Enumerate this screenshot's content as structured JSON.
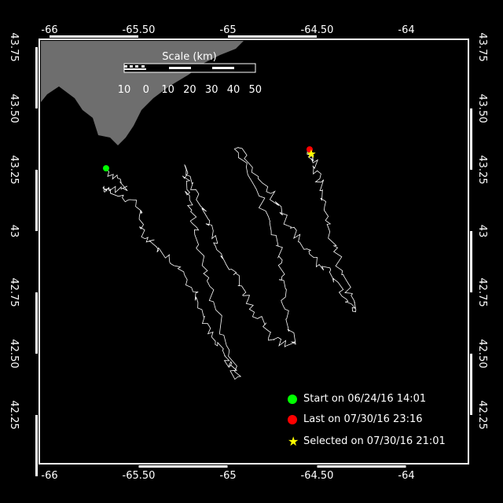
{
  "map": {
    "lon_ticks": [
      "-66",
      "-65.50",
      "-65",
      "-64.50",
      "-64"
    ],
    "lon_values": [
      -66,
      -65.5,
      -65,
      -64.5,
      -64
    ],
    "lat_ticks": [
      "43.75",
      "43.50",
      "43.25",
      "43",
      "42.75",
      "42.50",
      "42.25"
    ],
    "lat_values": [
      43.75,
      43.5,
      43.25,
      43,
      42.75,
      42.5,
      42.25
    ],
    "land_color": "#6e6e6e",
    "track_color": "#ffffff",
    "scale": {
      "title": "Scale (km)",
      "labels": [
        "10",
        "0",
        "10",
        "20",
        "30",
        "40",
        "50"
      ]
    },
    "track": [
      [
        -65.683,
        43.256
      ],
      [
        -65.573,
        43.173
      ],
      [
        -65.705,
        43.173
      ],
      [
        -65.507,
        43.109
      ],
      [
        -65.463,
        42.981
      ],
      [
        -65.33,
        42.885
      ],
      [
        -65.176,
        42.756
      ],
      [
        -65.11,
        42.596
      ],
      [
        -65.0,
        42.468
      ],
      [
        -64.943,
        42.397
      ],
      [
        -65.088,
        42.724
      ],
      [
        -65.176,
        42.981
      ],
      [
        -65.22,
        43.141
      ],
      [
        -65.242,
        43.26
      ],
      [
        -65.132,
        43.077
      ],
      [
        -65.044,
        42.917
      ],
      [
        -64.956,
        42.821
      ],
      [
        -64.868,
        42.692
      ],
      [
        -64.758,
        42.564
      ],
      [
        -64.626,
        42.532
      ],
      [
        -64.692,
        42.756
      ],
      [
        -64.714,
        42.917
      ],
      [
        -64.824,
        43.141
      ],
      [
        -64.956,
        43.356
      ],
      [
        -64.78,
        43.173
      ],
      [
        -64.648,
        43.013
      ],
      [
        -64.515,
        42.885
      ],
      [
        -64.383,
        42.788
      ],
      [
        -64.286,
        42.667
      ],
      [
        -64.339,
        42.788
      ],
      [
        -64.427,
        42.981
      ],
      [
        -64.471,
        43.173
      ],
      [
        -64.515,
        43.269
      ],
      [
        -64.542,
        43.333
      ]
    ],
    "start": {
      "lon": -65.683,
      "lat": 43.256,
      "color": "#00ff00"
    },
    "last": {
      "lon": -64.542,
      "lat": 43.333,
      "color": "#ff0000"
    },
    "selected": {
      "lon": -64.533,
      "lat": 43.314,
      "color": "#ffff00"
    }
  },
  "legend": {
    "start": "Start on 06/24/16 14:01",
    "last": "Last on 07/30/16 23:16",
    "selected": "Selected on 07/30/16 21:01"
  }
}
